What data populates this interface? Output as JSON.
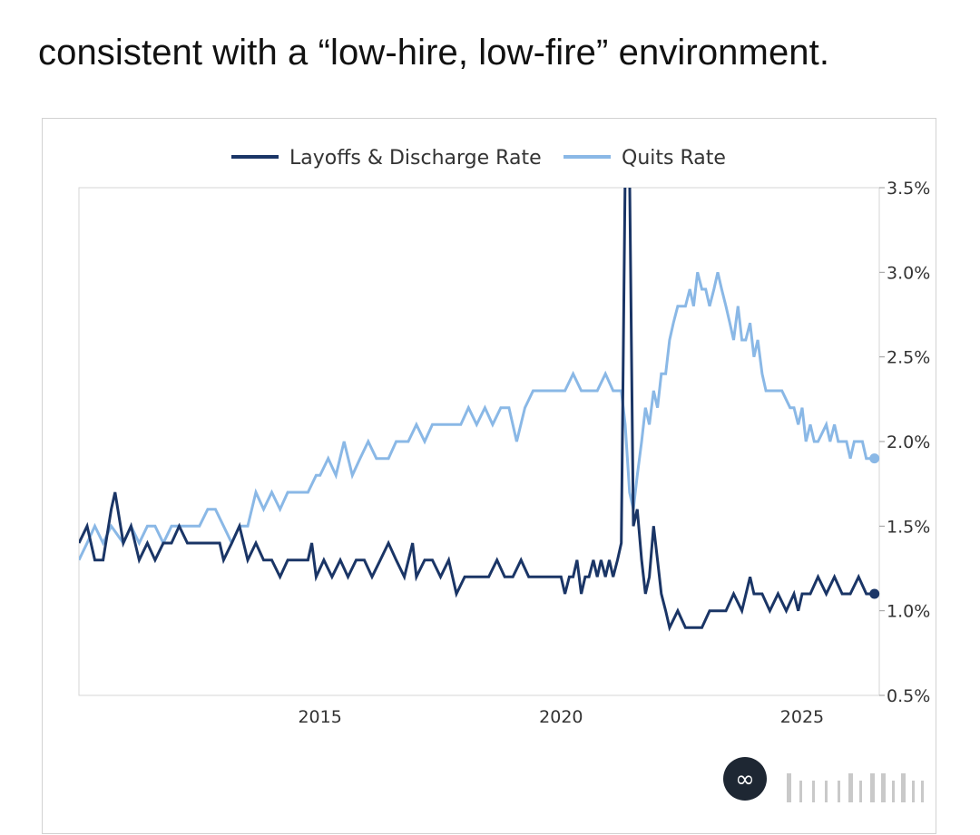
{
  "article": {
    "text": "consistent with a “low-hire, low-fire” environment."
  },
  "chart_data": {
    "type": "line",
    "title": "",
    "xlabel": "",
    "ylabel": "",
    "xlim": [
      2010.0,
      2026.6
    ],
    "ylim": [
      0.5,
      3.5
    ],
    "x_ticks": [
      2015,
      2020,
      2025
    ],
    "x_tick_labels": [
      "2015",
      "2020",
      "2025"
    ],
    "y_ticks": [
      0.5,
      1.0,
      1.5,
      2.0,
      2.5,
      3.0,
      3.5
    ],
    "y_tick_labels": [
      "0.5%",
      "1.0%",
      "1.5%",
      "2.0%",
      "2.5%",
      "3.0%",
      "3.5%"
    ],
    "y_axis_side": "right",
    "grid": false,
    "legend_position": "top-center",
    "series": [
      {
        "name": "Layoffs & Discharge Rate",
        "color": "#1a3566",
        "end_marker": true,
        "points": [
          [
            2010.0,
            1.4
          ],
          [
            2010.17,
            1.5
          ],
          [
            2010.33,
            1.3
          ],
          [
            2010.5,
            1.3
          ],
          [
            2010.67,
            1.6
          ],
          [
            2010.75,
            1.7
          ],
          [
            2010.92,
            1.4
          ],
          [
            2011.08,
            1.5
          ],
          [
            2011.25,
            1.3
          ],
          [
            2011.42,
            1.4
          ],
          [
            2011.58,
            1.3
          ],
          [
            2011.75,
            1.4
          ],
          [
            2011.92,
            1.4
          ],
          [
            2012.08,
            1.5
          ],
          [
            2012.25,
            1.4
          ],
          [
            2012.5,
            1.4
          ],
          [
            2012.75,
            1.4
          ],
          [
            2012.92,
            1.4
          ],
          [
            2013.0,
            1.3
          ],
          [
            2013.17,
            1.4
          ],
          [
            2013.33,
            1.5
          ],
          [
            2013.5,
            1.3
          ],
          [
            2013.67,
            1.4
          ],
          [
            2013.83,
            1.3
          ],
          [
            2014.0,
            1.3
          ],
          [
            2014.17,
            1.2
          ],
          [
            2014.33,
            1.3
          ],
          [
            2014.58,
            1.3
          ],
          [
            2014.75,
            1.3
          ],
          [
            2014.83,
            1.4
          ],
          [
            2014.92,
            1.2
          ],
          [
            2015.08,
            1.3
          ],
          [
            2015.25,
            1.2
          ],
          [
            2015.42,
            1.3
          ],
          [
            2015.58,
            1.2
          ],
          [
            2015.75,
            1.3
          ],
          [
            2015.92,
            1.3
          ],
          [
            2016.08,
            1.2
          ],
          [
            2016.25,
            1.3
          ],
          [
            2016.42,
            1.4
          ],
          [
            2016.58,
            1.3
          ],
          [
            2016.75,
            1.2
          ],
          [
            2016.92,
            1.4
          ],
          [
            2017.0,
            1.2
          ],
          [
            2017.17,
            1.3
          ],
          [
            2017.33,
            1.3
          ],
          [
            2017.5,
            1.2
          ],
          [
            2017.67,
            1.3
          ],
          [
            2017.83,
            1.1
          ],
          [
            2018.0,
            1.2
          ],
          [
            2018.25,
            1.2
          ],
          [
            2018.5,
            1.2
          ],
          [
            2018.67,
            1.3
          ],
          [
            2018.83,
            1.2
          ],
          [
            2019.0,
            1.2
          ],
          [
            2019.17,
            1.3
          ],
          [
            2019.33,
            1.2
          ],
          [
            2019.5,
            1.2
          ],
          [
            2019.67,
            1.2
          ],
          [
            2019.83,
            1.2
          ],
          [
            2020.0,
            1.2
          ],
          [
            2020.08,
            1.1
          ],
          [
            2020.17,
            1.2
          ],
          [
            2020.25,
            1.2
          ],
          [
            2020.33,
            1.3
          ],
          [
            2020.42,
            1.1
          ],
          [
            2020.5,
            1.2
          ],
          [
            2020.58,
            1.2
          ],
          [
            2020.67,
            1.3
          ],
          [
            2020.75,
            1.2
          ],
          [
            2020.83,
            1.3
          ],
          [
            2020.92,
            1.2
          ],
          [
            2021.0,
            1.3
          ],
          [
            2021.08,
            1.2
          ],
          [
            2021.17,
            1.3
          ],
          [
            2021.25,
            1.4
          ],
          [
            2021.33,
            3.6
          ],
          [
            2021.42,
            3.6
          ],
          [
            2021.5,
            1.5
          ],
          [
            2021.58,
            1.6
          ],
          [
            2021.67,
            1.3
          ],
          [
            2021.75,
            1.1
          ],
          [
            2021.83,
            1.2
          ],
          [
            2021.92,
            1.5
          ],
          [
            2022.0,
            1.3
          ],
          [
            2022.08,
            1.1
          ],
          [
            2022.17,
            1.0
          ],
          [
            2022.25,
            0.9
          ],
          [
            2022.42,
            1.0
          ],
          [
            2022.58,
            0.9
          ],
          [
            2022.75,
            0.9
          ],
          [
            2022.92,
            0.9
          ],
          [
            2023.08,
            1.0
          ],
          [
            2023.25,
            1.0
          ],
          [
            2023.42,
            1.0
          ],
          [
            2023.58,
            1.1
          ],
          [
            2023.75,
            1.0
          ],
          [
            2023.92,
            1.2
          ],
          [
            2024.0,
            1.1
          ],
          [
            2024.17,
            1.1
          ],
          [
            2024.33,
            1.0
          ],
          [
            2024.5,
            1.1
          ],
          [
            2024.67,
            1.0
          ],
          [
            2024.83,
            1.1
          ],
          [
            2024.92,
            1.0
          ],
          [
            2025.0,
            1.1
          ],
          [
            2025.17,
            1.1
          ],
          [
            2025.33,
            1.2
          ],
          [
            2025.5,
            1.1
          ],
          [
            2025.67,
            1.2
          ],
          [
            2025.83,
            1.1
          ],
          [
            2026.0,
            1.1
          ],
          [
            2026.17,
            1.2
          ],
          [
            2026.33,
            1.1
          ],
          [
            2026.5,
            1.1
          ]
        ]
      },
      {
        "name": "Quits Rate",
        "color": "#8ab8e6",
        "end_marker": true,
        "points": [
          [
            2010.0,
            1.3
          ],
          [
            2010.17,
            1.4
          ],
          [
            2010.33,
            1.5
          ],
          [
            2010.5,
            1.4
          ],
          [
            2010.67,
            1.5
          ],
          [
            2010.92,
            1.4
          ],
          [
            2011.08,
            1.5
          ],
          [
            2011.25,
            1.4
          ],
          [
            2011.42,
            1.5
          ],
          [
            2011.58,
            1.5
          ],
          [
            2011.75,
            1.4
          ],
          [
            2011.92,
            1.5
          ],
          [
            2012.08,
            1.5
          ],
          [
            2012.25,
            1.5
          ],
          [
            2012.5,
            1.5
          ],
          [
            2012.67,
            1.6
          ],
          [
            2012.83,
            1.6
          ],
          [
            2013.0,
            1.5
          ],
          [
            2013.17,
            1.4
          ],
          [
            2013.33,
            1.5
          ],
          [
            2013.5,
            1.5
          ],
          [
            2013.67,
            1.7
          ],
          [
            2013.83,
            1.6
          ],
          [
            2014.0,
            1.7
          ],
          [
            2014.17,
            1.6
          ],
          [
            2014.33,
            1.7
          ],
          [
            2014.5,
            1.7
          ],
          [
            2014.75,
            1.7
          ],
          [
            2014.92,
            1.8
          ],
          [
            2015.0,
            1.8
          ],
          [
            2015.17,
            1.9
          ],
          [
            2015.33,
            1.8
          ],
          [
            2015.5,
            2.0
          ],
          [
            2015.67,
            1.8
          ],
          [
            2015.83,
            1.9
          ],
          [
            2016.0,
            2.0
          ],
          [
            2016.17,
            1.9
          ],
          [
            2016.42,
            1.9
          ],
          [
            2016.58,
            2.0
          ],
          [
            2016.83,
            2.0
          ],
          [
            2017.0,
            2.1
          ],
          [
            2017.17,
            2.0
          ],
          [
            2017.33,
            2.1
          ],
          [
            2017.5,
            2.1
          ],
          [
            2017.67,
            2.1
          ],
          [
            2017.92,
            2.1
          ],
          [
            2018.08,
            2.2
          ],
          [
            2018.25,
            2.1
          ],
          [
            2018.42,
            2.2
          ],
          [
            2018.58,
            2.1
          ],
          [
            2018.75,
            2.2
          ],
          [
            2018.92,
            2.2
          ],
          [
            2019.08,
            2.0
          ],
          [
            2019.25,
            2.2
          ],
          [
            2019.42,
            2.3
          ],
          [
            2019.67,
            2.3
          ],
          [
            2019.92,
            2.3
          ],
          [
            2020.08,
            2.3
          ],
          [
            2020.25,
            2.4
          ],
          [
            2020.42,
            2.3
          ],
          [
            2020.58,
            2.3
          ],
          [
            2020.75,
            2.3
          ],
          [
            2020.92,
            2.4
          ],
          [
            2021.08,
            2.3
          ],
          [
            2021.25,
            2.3
          ],
          [
            2021.33,
            2.1
          ],
          [
            2021.42,
            1.7
          ],
          [
            2021.5,
            1.6
          ],
          [
            2021.58,
            1.8
          ],
          [
            2021.67,
            2.0
          ],
          [
            2021.75,
            2.2
          ],
          [
            2021.83,
            2.1
          ],
          [
            2021.92,
            2.3
          ],
          [
            2022.0,
            2.2
          ],
          [
            2022.08,
            2.4
          ],
          [
            2022.17,
            2.4
          ],
          [
            2022.25,
            2.6
          ],
          [
            2022.33,
            2.7
          ],
          [
            2022.42,
            2.8
          ],
          [
            2022.58,
            2.8
          ],
          [
            2022.67,
            2.9
          ],
          [
            2022.75,
            2.8
          ],
          [
            2022.83,
            3.0
          ],
          [
            2022.92,
            2.9
          ],
          [
            2023.0,
            2.9
          ],
          [
            2023.08,
            2.8
          ],
          [
            2023.17,
            2.9
          ],
          [
            2023.25,
            3.0
          ],
          [
            2023.33,
            2.9
          ],
          [
            2023.42,
            2.8
          ],
          [
            2023.5,
            2.7
          ],
          [
            2023.58,
            2.6
          ],
          [
            2023.67,
            2.8
          ],
          [
            2023.75,
            2.6
          ],
          [
            2023.83,
            2.6
          ],
          [
            2023.92,
            2.7
          ],
          [
            2024.0,
            2.5
          ],
          [
            2024.08,
            2.6
          ],
          [
            2024.17,
            2.4
          ],
          [
            2024.25,
            2.3
          ],
          [
            2024.42,
            2.3
          ],
          [
            2024.58,
            2.3
          ],
          [
            2024.75,
            2.2
          ],
          [
            2024.83,
            2.2
          ],
          [
            2024.92,
            2.1
          ],
          [
            2025.0,
            2.2
          ],
          [
            2025.08,
            2.0
          ],
          [
            2025.17,
            2.1
          ],
          [
            2025.25,
            2.0
          ],
          [
            2025.33,
            2.0
          ],
          [
            2025.5,
            2.1
          ],
          [
            2025.58,
            2.0
          ],
          [
            2025.67,
            2.1
          ],
          [
            2025.75,
            2.0
          ],
          [
            2025.92,
            2.0
          ],
          [
            2026.0,
            1.9
          ],
          [
            2026.08,
            2.0
          ],
          [
            2026.25,
            2.0
          ],
          [
            2026.33,
            1.9
          ],
          [
            2026.42,
            1.9
          ],
          [
            2026.5,
            1.9
          ]
        ]
      }
    ]
  },
  "watermark": {
    "logo_icon": "infinity-logo-icon",
    "logo_color": "#1e2733"
  }
}
